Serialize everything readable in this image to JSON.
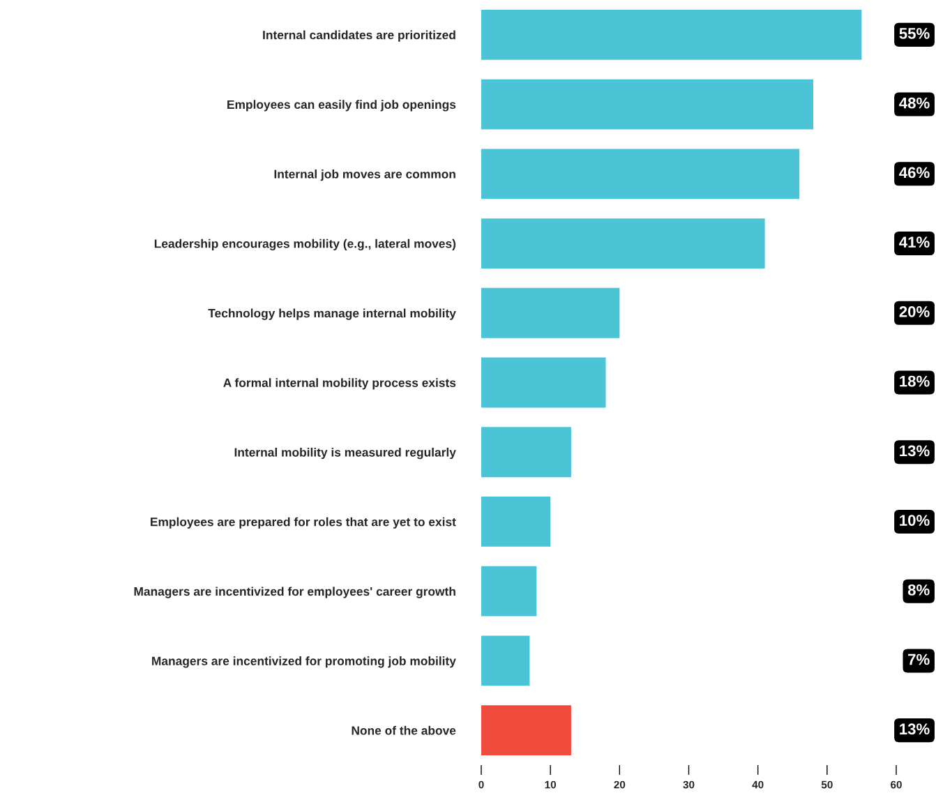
{
  "chart_data": {
    "type": "bar",
    "orientation": "horizontal",
    "categories": [
      "Internal candidates are prioritized",
      "Employees can easily find job openings",
      "Internal job moves are common",
      "Leadership encourages mobility (e.g., lateral moves)",
      "Technology helps manage internal mobility",
      "A formal internal mobility process exists",
      "Internal mobility is measured regularly",
      "Employees are prepared for roles that are yet to exist",
      "Managers are incentivized for employees' career growth",
      "Managers are incentivized for promoting job mobility",
      "None of the above"
    ],
    "values": [
      55,
      48,
      46,
      41,
      20,
      18,
      13,
      10,
      8,
      7,
      13
    ],
    "colors": [
      "#4bc4d6",
      "#4bc4d6",
      "#4bc4d6",
      "#4bc4d6",
      "#4bc4d6",
      "#4bc4d6",
      "#4bc4d6",
      "#4bc4d6",
      "#4bc4d6",
      "#4bc4d6",
      "#f04a3c"
    ],
    "value_labels": [
      "55%",
      "48%",
      "46%",
      "41%",
      "20%",
      "18%",
      "13%",
      "10%",
      "8%",
      "7%",
      "13%"
    ],
    "xlim": [
      0,
      60
    ],
    "xticks": [
      0,
      10,
      20,
      30,
      40,
      50,
      60
    ],
    "grid": false,
    "legend": false
  }
}
